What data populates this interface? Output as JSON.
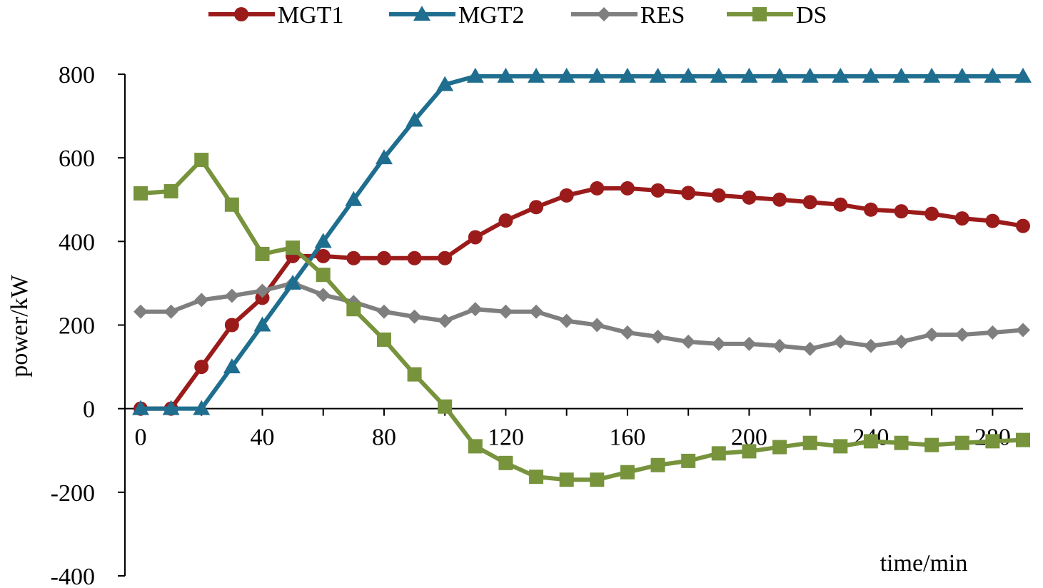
{
  "chart_data": {
    "type": "line",
    "title": "",
    "xlabel": "time/min",
    "ylabel": "power/kW",
    "xlim": [
      0,
      290
    ],
    "ylim": [
      -400,
      800
    ],
    "xticks": [
      0,
      40,
      80,
      120,
      160,
      200,
      240,
      280
    ],
    "xtick_labels": [
      "0",
      "40",
      "80",
      "120",
      "160",
      "200",
      "240",
      "280"
    ],
    "yticks": [
      -400,
      -200,
      0,
      200,
      400,
      600,
      800
    ],
    "ytick_labels": [
      "-400",
      "-200",
      "0",
      "200",
      "400",
      "600",
      "800"
    ],
    "grid": false,
    "legend_position": "top",
    "x": [
      0,
      10,
      20,
      30,
      40,
      50,
      60,
      70,
      80,
      90,
      100,
      110,
      120,
      130,
      140,
      150,
      160,
      170,
      180,
      190,
      200,
      210,
      220,
      230,
      240,
      250,
      260,
      270,
      280,
      290
    ],
    "series": [
      {
        "name": "MGT1",
        "color": "#9b1b1b",
        "marker": "circle",
        "values": [
          0,
          0,
          100,
          200,
          265,
          365,
          365,
          360,
          360,
          360,
          360,
          410,
          450,
          482,
          510,
          527,
          527,
          522,
          516,
          510,
          505,
          500,
          494,
          488,
          476,
          472,
          466,
          455,
          449,
          437
        ]
      },
      {
        "name": "MGT2",
        "color": "#1f6e8f",
        "marker": "triangle",
        "values": [
          0,
          0,
          0,
          100,
          200,
          300,
          400,
          500,
          600,
          690,
          775,
          795,
          795,
          795,
          795,
          795,
          795,
          795,
          795,
          795,
          795,
          795,
          795,
          795,
          795,
          795,
          795,
          795,
          795,
          795
        ]
      },
      {
        "name": "RES",
        "color": "#7f7f7f",
        "marker": "diamond",
        "values": [
          232,
          232,
          260,
          270,
          282,
          300,
          272,
          255,
          232,
          220,
          210,
          238,
          232,
          232,
          210,
          200,
          182,
          172,
          160,
          155,
          155,
          150,
          143,
          160,
          150,
          160,
          177,
          177,
          182,
          188
        ]
      },
      {
        "name": "DS",
        "color": "#77933c",
        "marker": "square",
        "values": [
          515,
          520,
          595,
          488,
          370,
          385,
          320,
          238,
          165,
          82,
          5,
          -90,
          -130,
          -163,
          -170,
          -170,
          -152,
          -135,
          -125,
          -107,
          -102,
          -92,
          -82,
          -90,
          -78,
          -82,
          -87,
          -82,
          -78,
          -75
        ]
      }
    ]
  }
}
